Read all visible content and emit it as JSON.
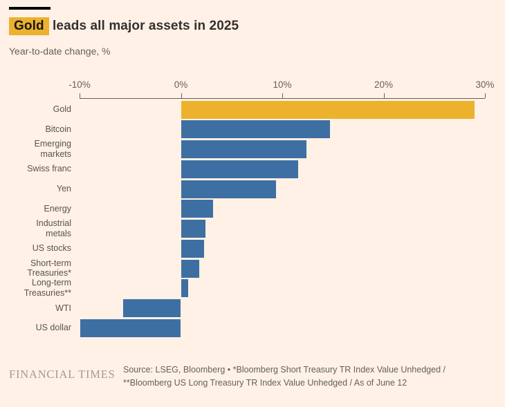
{
  "header": {
    "title_highlight": "Gold",
    "title_rest": " leads all major assets in 2025",
    "subtitle": "Year-to-date change, %"
  },
  "chart_data": {
    "type": "bar",
    "orientation": "horizontal",
    "title": "Gold leads all major assets in 2025",
    "subtitle": "Year-to-date change, %",
    "xlabel": "Year-to-date change, %",
    "xlim": [
      -10,
      30
    ],
    "grid": false,
    "legend": "none",
    "colors": {
      "highlight": "#ECB22E",
      "default": "#3D6FA3"
    },
    "x_ticks": [
      {
        "label": "-10%",
        "value": -10
      },
      {
        "label": "0%",
        "value": 0
      },
      {
        "label": "10%",
        "value": 10
      },
      {
        "label": "20%",
        "value": 20
      },
      {
        "label": "30%",
        "value": 30
      }
    ],
    "points": [
      {
        "label": "Gold",
        "value": 29.0,
        "highlight": true
      },
      {
        "label": "Bitcoin",
        "value": 14.7,
        "highlight": false
      },
      {
        "label": "Emerging markets",
        "value": 12.4,
        "highlight": false
      },
      {
        "label": "Swiss franc",
        "value": 11.6,
        "highlight": false
      },
      {
        "label": "Yen",
        "value": 9.4,
        "highlight": false
      },
      {
        "label": "Energy",
        "value": 3.2,
        "highlight": false
      },
      {
        "label": "Industrial metals",
        "value": 2.4,
        "highlight": false
      },
      {
        "label": "US stocks",
        "value": 2.3,
        "highlight": false
      },
      {
        "label": "Short-term Treasuries*",
        "value": 1.8,
        "highlight": false
      },
      {
        "label": "Long-term Treasuries**",
        "value": 0.7,
        "highlight": false
      },
      {
        "label": "WTI",
        "value": -5.7,
        "highlight": false
      },
      {
        "label": "US dollar",
        "value": -9.9,
        "highlight": false
      }
    ]
  },
  "footer": {
    "brand": "FINANCIAL TIMES",
    "source": "Source: LSEG, Bloomberg • *Bloomberg Short Treasury TR Index Value Unhedged / **Bloomberg US Long Treasury TR Index Value Unhedged / As of June 12"
  },
  "colors": {
    "background": "#FFF1E5",
    "gold": "#ECB22E",
    "blue": "#3D6FA3",
    "text_dark": "#33302E",
    "text_mid": "#66605B"
  }
}
